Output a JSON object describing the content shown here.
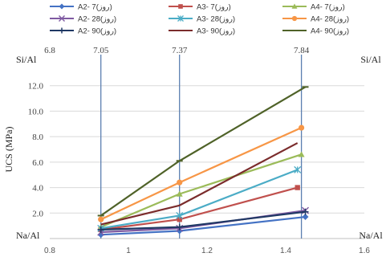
{
  "chart_data": {
    "type": "line",
    "ylabel": "UCS (MPa)",
    "xlabel_left": "Na/Al",
    "xlabel_right": "Na/Al",
    "top_label_left": "Si/Al",
    "top_label_right": "Si/Al",
    "xlim": [
      0.8,
      1.6
    ],
    "ylim": [
      0,
      14
    ],
    "x_ticks": [
      "0.8",
      "1",
      "1.2",
      "1.4",
      "1.6"
    ],
    "y_ticks": [
      "2.0",
      "4.0",
      "6.0",
      "8.0",
      "10.0",
      "12.0"
    ],
    "top_ticks": [
      {
        "x": 0.8,
        "label": "6.8"
      },
      {
        "x": 0.93,
        "label": "7.05"
      },
      {
        "x": 1.13,
        "label": "7.37"
      },
      {
        "x": 1.44,
        "label": "7.84"
      }
    ],
    "vlines": [
      0.93,
      1.13,
      1.44
    ],
    "series": [
      {
        "name": "A2- 7(روز)",
        "color": "#4472c4",
        "marker": "diamond",
        "x": [
          0.93,
          1.13,
          1.45
        ],
        "y": [
          0.3,
          0.6,
          1.7
        ]
      },
      {
        "name": "A3- 7(روز)",
        "color": "#c0504d",
        "marker": "square",
        "x": [
          0.93,
          1.13,
          1.43
        ],
        "y": [
          0.7,
          1.5,
          4.0
        ]
      },
      {
        "name": "A4- 7(روز)",
        "color": "#9bbb59",
        "marker": "triangle",
        "x": [
          0.93,
          1.13,
          1.44
        ],
        "y": [
          0.9,
          3.5,
          6.6
        ]
      },
      {
        "name": "A2- 28(روز)",
        "color": "#7f5aa2",
        "marker": "x",
        "x": [
          0.93,
          1.13,
          1.45
        ],
        "y": [
          0.5,
          0.8,
          2.2
        ]
      },
      {
        "name": "A3- 28(روز)",
        "color": "#4bacc6",
        "marker": "star",
        "x": [
          0.93,
          1.13,
          1.43
        ],
        "y": [
          0.8,
          1.8,
          5.4
        ]
      },
      {
        "name": "A4- 28(روز)",
        "color": "#f79646",
        "marker": "circle",
        "x": [
          0.93,
          1.13,
          1.44
        ],
        "y": [
          1.5,
          4.4,
          8.7
        ]
      },
      {
        "name": "A2- 90(روز)",
        "color": "#1f3864",
        "marker": "plus",
        "x": [
          0.93,
          1.13,
          1.45
        ],
        "y": [
          0.7,
          0.9,
          2.1
        ]
      },
      {
        "name": "A3- 90(روز)",
        "color": "#7b2c2c",
        "marker": "none",
        "x": [
          0.93,
          1.13,
          1.43
        ],
        "y": [
          1.1,
          2.6,
          7.5
        ]
      },
      {
        "name": "A4- 90(روز)",
        "color": "#4f6228",
        "marker": "dash",
        "x": [
          0.93,
          1.13,
          1.45
        ],
        "y": [
          1.8,
          6.1,
          11.9
        ]
      }
    ]
  }
}
